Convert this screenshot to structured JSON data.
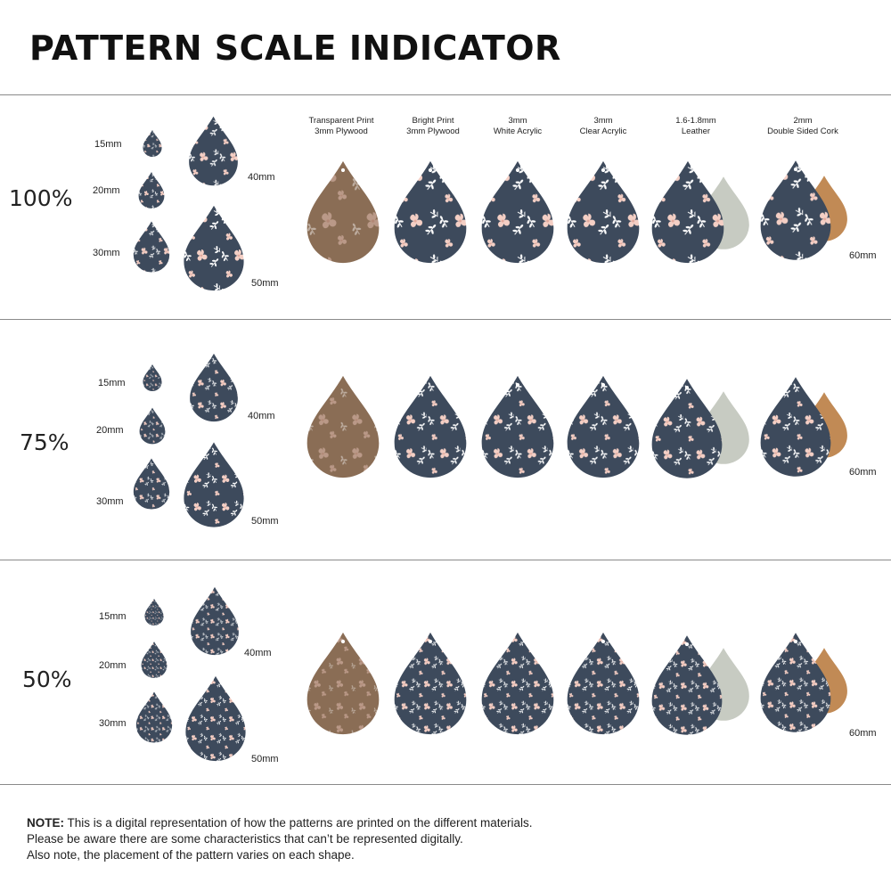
{
  "title": "PATTERN SCALE INDICATOR",
  "colors": {
    "pattern_bg": "#3d4a5c",
    "wood": "#8a6d55",
    "flower": "#f4cfc5",
    "leaf": "#ffffff",
    "suede": "#c7cbc2",
    "cork": "#c18a55",
    "rule": "#8a8a8a"
  },
  "materials": [
    {
      "line1": "Transparent Print",
      "line2": "3mm Plywood"
    },
    {
      "line1": "Bright Print",
      "line2": "3mm Plywood"
    },
    {
      "line1": "3mm",
      "line2": "White Acrylic"
    },
    {
      "line1": "3mm",
      "line2": "Clear Acrylic"
    },
    {
      "line1": "1.6-1.8mm",
      "line2": "Leather"
    },
    {
      "line1": "2mm",
      "line2": "Double Sided Cork"
    }
  ],
  "rows": [
    {
      "scale": "100%",
      "sizes": [
        "15mm",
        "20mm",
        "30mm",
        "40mm",
        "50mm"
      ],
      "large": "60mm"
    },
    {
      "scale": "75%",
      "sizes": [
        "15mm",
        "20mm",
        "30mm",
        "40mm",
        "50mm"
      ],
      "large": "60mm"
    },
    {
      "scale": "50%",
      "sizes": [
        "15mm",
        "20mm",
        "30mm",
        "40mm",
        "50mm"
      ],
      "large": "60mm"
    }
  ],
  "note": {
    "label": "NOTE:",
    "line1": "This is a digital representation of how the patterns are printed on the different materials.",
    "line2": "Please be aware there are some characteristics that can’t be represented digitally.",
    "line3": "Also note, the placement of the pattern varies on each shape."
  }
}
